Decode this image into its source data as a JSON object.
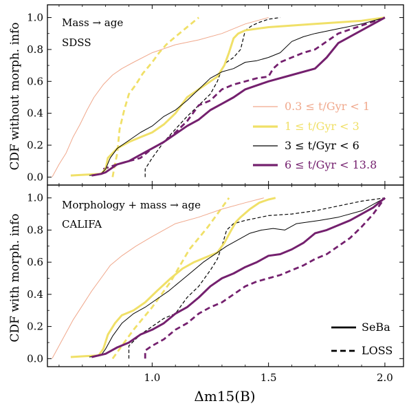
{
  "chart_data": {
    "type": "line",
    "xlabel": "Δm15(B)",
    "xlim": [
      0.55,
      2.08
    ],
    "x_ticks": [
      "1.0",
      "1.5",
      "2.0"
    ],
    "y_ticks": [
      "0.0",
      "0.2",
      "0.4",
      "0.6",
      "0.8",
      "1.0"
    ],
    "age_legend": [
      "0.3 ≤ t/Gyr < 1",
      "1 ≤ t/Gyr < 3",
      "3 ≤ t/Gyr < 6",
      "6 ≤ t/Gyr < 13.8"
    ],
    "style_legend": [
      "SeBa",
      "LOSS"
    ],
    "colors": {
      "bin1": "#f0a88c",
      "bin2": "#f0e068",
      "bin3": "#000000",
      "bin4": "#74206e"
    },
    "panels": [
      {
        "ylabel": "CDF without morph. info",
        "annotation": [
          "Mass → age",
          "SDSS"
        ],
        "ylim": [
          -0.05,
          1.08
        ],
        "series": [
          {
            "age": "0.3 ≤ t/Gyr < 1",
            "style": "SeBa",
            "x": [
              0.57,
              0.6,
              0.63,
              0.66,
              0.69,
              0.72,
              0.75,
              0.79,
              0.83,
              0.87,
              0.92,
              1.0,
              1.1,
              1.2,
              1.3,
              1.4,
              1.5
            ],
            "y": [
              0,
              0.08,
              0.15,
              0.25,
              0.33,
              0.42,
              0.5,
              0.58,
              0.64,
              0.68,
              0.72,
              0.78,
              0.83,
              0.86,
              0.9,
              0.96,
              1.0
            ]
          },
          {
            "age": "1 ≤ t/Gyr < 3",
            "style": "SeBa",
            "x": [
              0.65,
              0.78,
              0.8,
              0.81,
              0.85,
              0.9,
              0.95,
              1.0,
              1.05,
              1.1,
              1.15,
              1.2,
              1.25,
              1.28,
              1.31,
              1.33,
              1.35,
              1.37,
              1.4,
              1.5,
              1.6,
              1.7,
              1.8,
              1.9,
              2.0
            ],
            "y": [
              0.01,
              0.02,
              0.05,
              0.12,
              0.18,
              0.22,
              0.25,
              0.28,
              0.33,
              0.4,
              0.5,
              0.55,
              0.6,
              0.63,
              0.7,
              0.78,
              0.87,
              0.9,
              0.92,
              0.94,
              0.95,
              0.96,
              0.97,
              0.98,
              1.0
            ]
          },
          {
            "age": "3 ≤ t/Gyr < 6",
            "style": "SeBa",
            "x": [
              0.73,
              0.78,
              0.8,
              0.82,
              0.85,
              0.9,
              0.95,
              1.0,
              1.05,
              1.1,
              1.15,
              1.2,
              1.25,
              1.3,
              1.35,
              1.4,
              1.45,
              1.5,
              1.55,
              1.6,
              1.65,
              1.7,
              1.8,
              1.9,
              2.0
            ],
            "y": [
              0.01,
              0.02,
              0.05,
              0.12,
              0.18,
              0.23,
              0.28,
              0.32,
              0.38,
              0.42,
              0.48,
              0.55,
              0.62,
              0.66,
              0.68,
              0.72,
              0.73,
              0.75,
              0.78,
              0.85,
              0.88,
              0.9,
              0.93,
              0.96,
              1.0
            ]
          },
          {
            "age": "6 ≤ t/Gyr < 13.8",
            "style": "SeBa",
            "x": [
              0.74,
              0.78,
              0.8,
              0.82,
              0.85,
              0.9,
              0.95,
              1.0,
              1.05,
              1.1,
              1.15,
              1.2,
              1.25,
              1.3,
              1.35,
              1.4,
              1.5,
              1.6,
              1.7,
              1.75,
              1.8,
              1.9,
              2.0
            ],
            "y": [
              0.01,
              0.02,
              0.03,
              0.05,
              0.08,
              0.1,
              0.14,
              0.18,
              0.22,
              0.27,
              0.32,
              0.36,
              0.42,
              0.46,
              0.5,
              0.55,
              0.6,
              0.64,
              0.68,
              0.75,
              0.84,
              0.92,
              1.0
            ]
          },
          {
            "age": "1 ≤ t/Gyr < 3",
            "style": "LOSS",
            "x": [
              0.83,
              0.84,
              0.85,
              0.86,
              0.88,
              0.9,
              0.93,
              0.96,
              1.0,
              1.03,
              1.06,
              1.1,
              1.15,
              1.2
            ],
            "y": [
              0.0,
              0.08,
              0.15,
              0.3,
              0.42,
              0.52,
              0.58,
              0.65,
              0.72,
              0.78,
              0.83,
              0.88,
              0.94,
              1.0
            ]
          },
          {
            "age": "3 ≤ t/Gyr < 6",
            "style": "LOSS",
            "x": [
              0.97,
              0.97,
              1.0,
              1.05,
              1.1,
              1.15,
              1.2,
              1.25,
              1.28,
              1.3,
              1.32,
              1.35,
              1.38,
              1.4,
              1.43,
              1.46,
              1.5,
              1.55
            ],
            "y": [
              0.0,
              0.05,
              0.12,
              0.22,
              0.3,
              0.38,
              0.45,
              0.52,
              0.6,
              0.68,
              0.72,
              0.75,
              0.8,
              0.92,
              0.95,
              0.97,
              0.99,
              1.0
            ]
          },
          {
            "age": "6 ≤ t/Gyr < 13.8",
            "style": "LOSS",
            "x": [
              0.79,
              0.85,
              0.9,
              0.95,
              1.0,
              1.05,
              1.1,
              1.15,
              1.2,
              1.25,
              1.3,
              1.35,
              1.4,
              1.45,
              1.5,
              1.52,
              1.55,
              1.6,
              1.65,
              1.7,
              1.75,
              1.8,
              1.9,
              2.0
            ],
            "y": [
              0.05,
              0.08,
              0.1,
              0.12,
              0.18,
              0.22,
              0.28,
              0.35,
              0.45,
              0.48,
              0.55,
              0.58,
              0.6,
              0.62,
              0.63,
              0.68,
              0.72,
              0.75,
              0.78,
              0.8,
              0.85,
              0.9,
              0.95,
              1.0
            ]
          }
        ]
      },
      {
        "ylabel": "CDF with morph. info",
        "annotation": [
          "Morphology + mass → age",
          "CALIFA"
        ],
        "ylim": [
          -0.05,
          1.08
        ],
        "series": [
          {
            "age": "0.3 ≤ t/Gyr < 1",
            "style": "SeBa",
            "x": [
              0.57,
              0.6,
              0.63,
              0.66,
              0.7,
              0.74,
              0.78,
              0.82,
              0.87,
              0.93,
              1.0,
              1.1,
              1.2,
              1.3,
              1.4,
              1.48
            ],
            "y": [
              0,
              0.08,
              0.16,
              0.24,
              0.33,
              0.42,
              0.5,
              0.58,
              0.64,
              0.7,
              0.76,
              0.84,
              0.88,
              0.93,
              0.97,
              1.0
            ]
          },
          {
            "age": "1 ≤ t/Gyr < 3",
            "style": "SeBa",
            "x": [
              0.65,
              0.77,
              0.79,
              0.81,
              0.84,
              0.87,
              0.92,
              0.97,
              1.02,
              1.08,
              1.13,
              1.18,
              1.23,
              1.28,
              1.31,
              1.34,
              1.36,
              1.38,
              1.42,
              1.46,
              1.5,
              1.53
            ],
            "y": [
              0.01,
              0.02,
              0.06,
              0.15,
              0.22,
              0.27,
              0.3,
              0.35,
              0.42,
              0.5,
              0.56,
              0.6,
              0.63,
              0.66,
              0.72,
              0.8,
              0.85,
              0.88,
              0.93,
              0.97,
              0.99,
              1.0
            ]
          },
          {
            "age": "3 ≤ t/Gyr < 6",
            "style": "SeBa",
            "x": [
              0.73,
              0.78,
              0.8,
              0.83,
              0.87,
              0.92,
              0.97,
              1.02,
              1.07,
              1.12,
              1.17,
              1.22,
              1.27,
              1.32,
              1.37,
              1.42,
              1.47,
              1.52,
              1.57,
              1.62,
              1.67,
              1.72,
              1.8,
              1.9,
              2.0
            ],
            "y": [
              0.01,
              0.02,
              0.06,
              0.14,
              0.22,
              0.28,
              0.32,
              0.37,
              0.42,
              0.48,
              0.54,
              0.6,
              0.65,
              0.7,
              0.74,
              0.78,
              0.8,
              0.81,
              0.8,
              0.84,
              0.85,
              0.86,
              0.88,
              0.92,
              1.0
            ]
          },
          {
            "age": "6 ≤ t/Gyr < 13.8",
            "style": "SeBa",
            "x": [
              0.74,
              0.8,
              0.85,
              0.9,
              0.95,
              1.0,
              1.05,
              1.1,
              1.15,
              1.2,
              1.25,
              1.3,
              1.35,
              1.4,
              1.45,
              1.5,
              1.55,
              1.6,
              1.65,
              1.7,
              1.75,
              1.8,
              1.85,
              1.9,
              1.95,
              2.0
            ],
            "y": [
              0.01,
              0.03,
              0.07,
              0.1,
              0.15,
              0.18,
              0.22,
              0.28,
              0.32,
              0.38,
              0.45,
              0.5,
              0.53,
              0.57,
              0.6,
              0.64,
              0.65,
              0.68,
              0.72,
              0.78,
              0.8,
              0.83,
              0.86,
              0.9,
              0.94,
              1.0
            ]
          },
          {
            "age": "1 ≤ t/Gyr < 3",
            "style": "LOSS",
            "x": [
              0.83,
              0.88,
              0.92,
              0.96,
              1.0,
              1.04,
              1.08,
              1.12,
              1.16,
              1.2,
              1.24,
              1.27,
              1.3,
              1.33
            ],
            "y": [
              0.0,
              0.1,
              0.18,
              0.25,
              0.32,
              0.4,
              0.48,
              0.58,
              0.68,
              0.75,
              0.82,
              0.88,
              0.94,
              1.0
            ]
          },
          {
            "age": "3 ≤ t/Gyr < 6",
            "style": "LOSS",
            "x": [
              0.9,
              0.9,
              0.95,
              1.0,
              1.05,
              1.1,
              1.15,
              1.2,
              1.25,
              1.28,
              1.3,
              1.32,
              1.35,
              1.4,
              1.5,
              1.6,
              1.7,
              1.8,
              1.9,
              2.0
            ],
            "y": [
              0.0,
              0.08,
              0.15,
              0.2,
              0.25,
              0.28,
              0.38,
              0.45,
              0.55,
              0.62,
              0.7,
              0.8,
              0.84,
              0.86,
              0.89,
              0.9,
              0.92,
              0.95,
              0.98,
              1.0
            ]
          },
          {
            "age": "6 ≤ t/Gyr < 13.8",
            "style": "LOSS",
            "x": [
              0.97,
              0.97,
              1.0,
              1.05,
              1.1,
              1.15,
              1.2,
              1.25,
              1.3,
              1.35,
              1.4,
              1.45,
              1.5,
              1.55,
              1.6,
              1.65,
              1.7,
              1.75,
              1.8,
              1.85,
              1.9,
              1.95,
              2.0
            ],
            "y": [
              0.0,
              0.05,
              0.08,
              0.12,
              0.18,
              0.22,
              0.28,
              0.32,
              0.35,
              0.4,
              0.45,
              0.48,
              0.5,
              0.52,
              0.55,
              0.58,
              0.62,
              0.65,
              0.7,
              0.75,
              0.82,
              0.9,
              1.0
            ]
          }
        ]
      }
    ]
  }
}
